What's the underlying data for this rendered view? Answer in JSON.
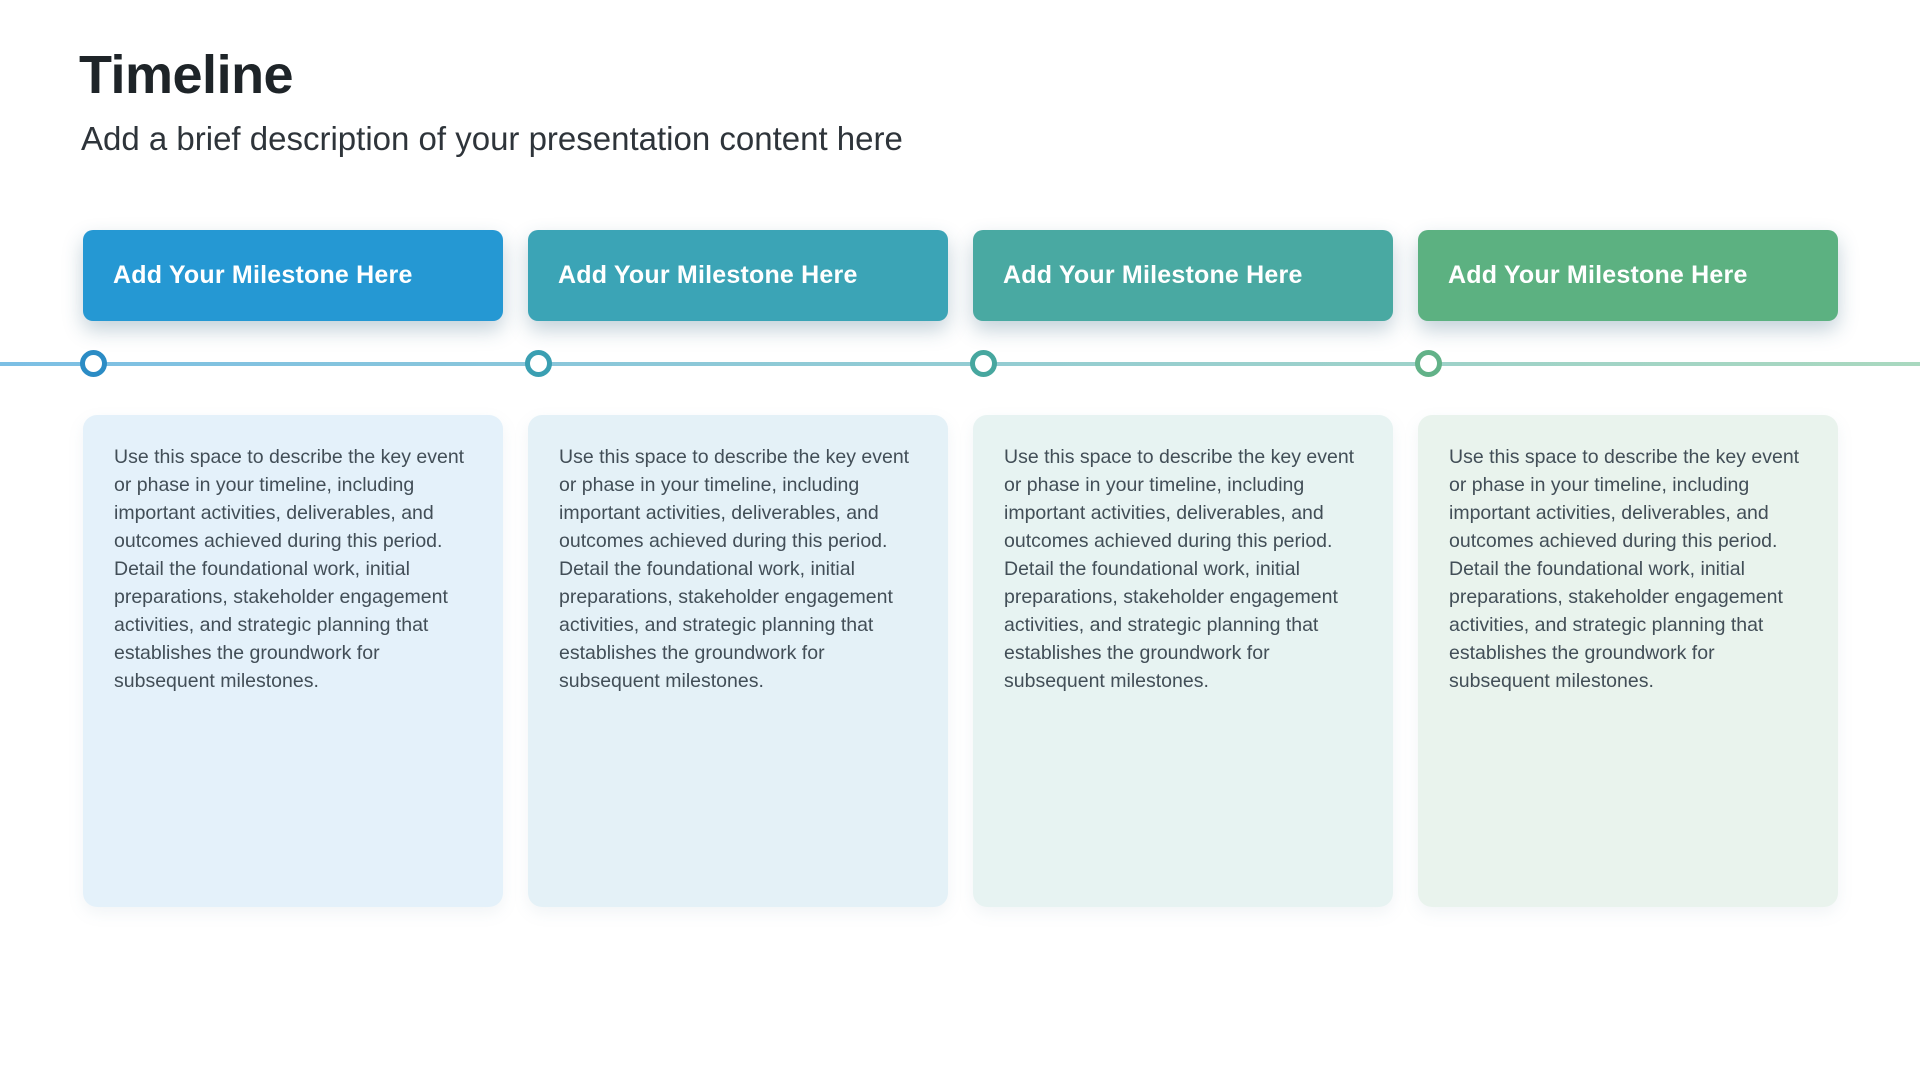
{
  "header": {
    "title": "Timeline",
    "subtitle": "Add a brief description of your presentation content here"
  },
  "milestones": [
    {
      "label": "Add Your Milestone Here",
      "description": "Use this space to describe the key event or phase in your timeline, including important activities, deliverables, and outcomes achieved during this period. Detail the foundational work, initial preparations, stakeholder engagement activities, and strategic planning that establishes the groundwork for subsequent milestones.",
      "bar_color": "#2598d3",
      "dot_color": "#2b8cc5",
      "card_bg": "#e4f1fa"
    },
    {
      "label": "Add Your Milestone Here",
      "description": "Use this space to describe the key event or phase in your timeline, including important activities, deliverables, and outcomes achieved during this period. Detail the foundational work, initial preparations, stakeholder engagement activities, and strategic planning that establishes the groundwork for subsequent milestones.",
      "bar_color": "#3ba4b6",
      "dot_color": "#3a9fb2",
      "card_bg": "#e4f1f7"
    },
    {
      "label": "Add Your Milestone Here",
      "description": "Use this space to describe the key event or phase in your timeline, including important activities, deliverables, and outcomes achieved during this period. Detail the foundational work, initial preparations, stakeholder engagement activities, and strategic planning that establishes the groundwork for subsequent milestones.",
      "bar_color": "#49a9a2",
      "dot_color": "#47a79f",
      "card_bg": "#e7f3f2"
    },
    {
      "label": "Add Your Milestone Here",
      "description": "Use this space to describe the key event or phase in your timeline, including important activities, deliverables, and outcomes achieved during this period. Detail the foundational work, initial preparations, stakeholder engagement activities, and strategic planning that establishes the groundwork for subsequent milestones.",
      "bar_color": "#5cb181",
      "dot_color": "#62b288",
      "card_bg": "#e9f3ed"
    }
  ],
  "timeline": {
    "line_gradient": [
      "#7cbfe4",
      "#93ccd3",
      "#a9d8bf"
    ]
  }
}
